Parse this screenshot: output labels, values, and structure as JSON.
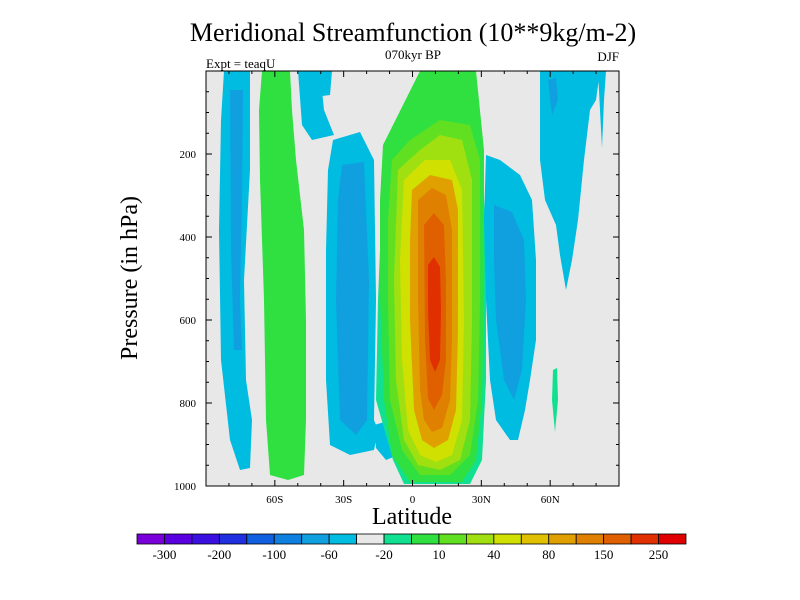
{
  "chart_data": {
    "type": "heatmap",
    "title": "Meridional Streamfunction (10**9kg/m-2)",
    "subtitle": "070kyr BP",
    "left_label": "Expt = teaqU",
    "right_label": "DJF",
    "xlabel": "Latitude",
    "ylabel": "Pressure (in hPa)",
    "xlim": [
      -90,
      90
    ],
    "ylim": [
      0,
      1000
    ],
    "y_inverted": true,
    "x_ticks": [
      {
        "value": -60,
        "label": "60S"
      },
      {
        "value": -30,
        "label": "30S"
      },
      {
        "value": 0,
        "label": "0"
      },
      {
        "value": 30,
        "label": "30N"
      },
      {
        "value": 60,
        "label": "60N"
      }
    ],
    "y_ticks": [
      {
        "value": 200,
        "label": "200"
      },
      {
        "value": 400,
        "label": "400"
      },
      {
        "value": 600,
        "label": "600"
      },
      {
        "value": 800,
        "label": "800"
      },
      {
        "value": 1000,
        "label": "1000"
      }
    ],
    "colorbar": {
      "orientation": "horizontal",
      "colors": [
        "#7a00d9",
        "#5a00e0",
        "#3a10e0",
        "#2030e0",
        "#1060e0",
        "#1080e0",
        "#10a0e0",
        "#00bce0",
        "#e8e8e8",
        "#10e090",
        "#30e040",
        "#60e020",
        "#a0e010",
        "#d0e000",
        "#e0c000",
        "#e0a000",
        "#e08000",
        "#e06000",
        "#e03000",
        "#e00000"
      ],
      "labels": [
        {
          "index": 1,
          "text": "-300"
        },
        {
          "index": 3,
          "text": "-200"
        },
        {
          "index": 5,
          "text": "-100"
        },
        {
          "index": 7,
          "text": "-60"
        },
        {
          "index": 9,
          "text": "-20"
        },
        {
          "index": 11,
          "text": "10"
        },
        {
          "index": 13,
          "text": "40"
        },
        {
          "index": 15,
          "text": "80"
        },
        {
          "index": 17,
          "text": "150"
        },
        {
          "index": 19,
          "text": "250"
        }
      ]
    },
    "features": [
      {
        "name": "hadley-cell-positive",
        "lat": [
          -17,
          32
        ],
        "pressure": [
          80,
          990
        ],
        "peak_level": 250,
        "peak_lat": 9,
        "peak_pressure": 500
      },
      {
        "name": "south-polar-negative",
        "lat": [
          -87,
          -77
        ],
        "pressure": [
          0,
          960
        ],
        "level": -20
      },
      {
        "name": "ferrel-south-positive",
        "lat": [
          -75,
          -55
        ],
        "pressure": [
          0,
          990
        ],
        "level": 40
      },
      {
        "name": "ferrel-south-negative",
        "lat": [
          -43,
          -23
        ],
        "pressure": [
          150,
          960
        ],
        "level": -20
      },
      {
        "name": "north-negative-cell",
        "lat": [
          32,
          50
        ],
        "pressure": [
          150,
          940
        ],
        "level": -20
      },
      {
        "name": "north-upper-negative",
        "lat": [
          58,
          86
        ],
        "pressure": [
          0,
          500
        ],
        "level": -20
      }
    ]
  }
}
